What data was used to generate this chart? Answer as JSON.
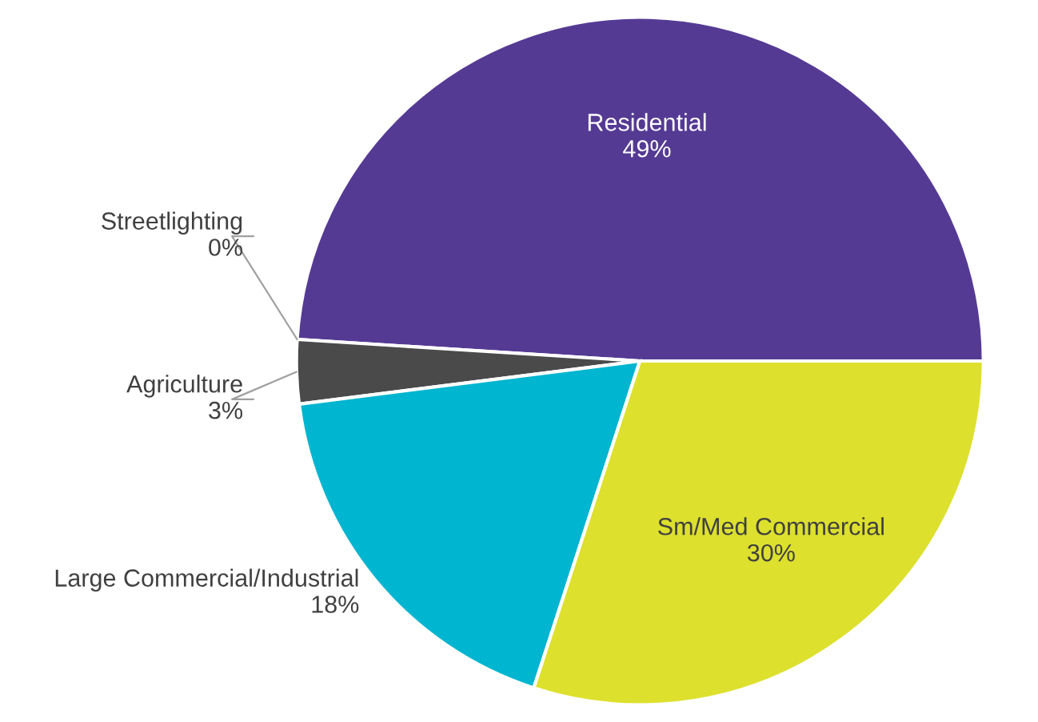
{
  "chart_data": {
    "type": "pie",
    "categories": [
      "Residential",
      "Streetlighting",
      "Agriculture",
      "Large Commercial/Industrial",
      "Sm/Med Commercial"
    ],
    "values": [
      49,
      0,
      3,
      18,
      30
    ],
    "value_labels": [
      "49%",
      "0%",
      "3%",
      "18%",
      "30%"
    ],
    "colors": [
      "#553a94",
      "#8db8d8",
      "#4a4a4a",
      "#00b5d0",
      "#dde02d"
    ]
  }
}
